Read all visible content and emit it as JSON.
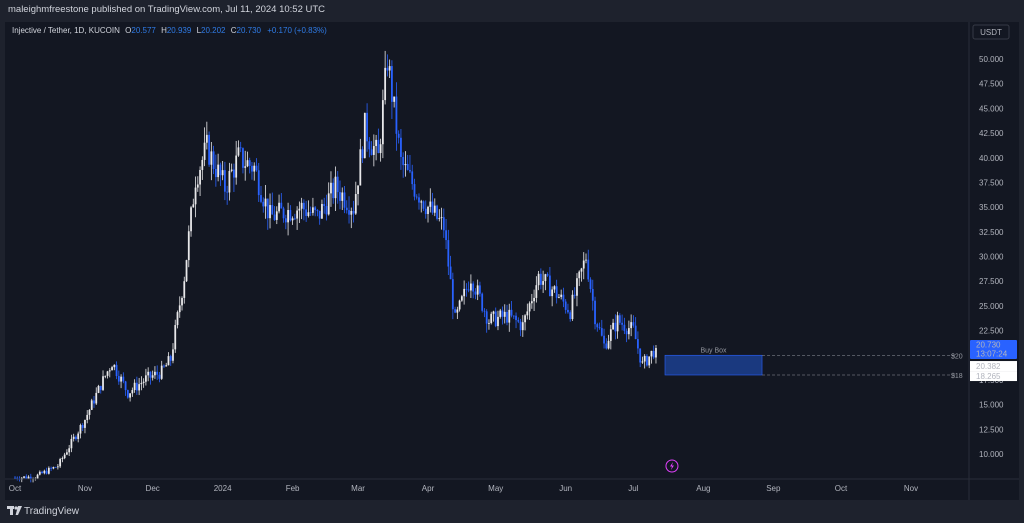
{
  "header": {
    "publisher_text": "maleighmfreestone published on TradingView.com, Jul 11, 2024 10:52 UTC"
  },
  "legend": {
    "symbol": "Injective / Tether, 1D, KUCOIN",
    "o_label": "O",
    "o_value": "20.577",
    "h_label": "H",
    "h_value": "20.939",
    "l_label": "L",
    "l_value": "20.202",
    "c_label": "C",
    "c_value": "20.730",
    "change": "+0.170 (+0.83%)"
  },
  "colors": {
    "background": "#131722",
    "frame": "#1e222d",
    "up_candle": "#e8e8ea",
    "down_candle": "#2962ff",
    "price_tag": "#2962ff",
    "buy_box": "#1c3f8f",
    "signal_icon": "#e040fb"
  },
  "footer": {
    "brand": "TradingView",
    "logo_icon": "tradingview-logo-icon"
  },
  "chart_data": {
    "type": "candlestick",
    "symbol": "Injective / Tether",
    "timeframe": "1D",
    "exchange": "KUCOIN",
    "y_unit_label": "USDT",
    "y_ticks": [
      "50.000",
      "47.500",
      "45.000",
      "42.500",
      "40.000",
      "37.500",
      "35.000",
      "32.500",
      "30.000",
      "27.500",
      "25.000",
      "22.500",
      "20.000",
      "17.500",
      "15.000",
      "12.500",
      "10.000"
    ],
    "x_ticks": [
      "Oct",
      "Nov",
      "Dec",
      "2024",
      "Feb",
      "Mar",
      "Apr",
      "May",
      "Jun",
      "Jul",
      "Aug",
      "Sep",
      "Oct",
      "Nov"
    ],
    "ylim": [
      6,
      53
    ],
    "price_path": [
      {
        "date": "2023-10-01",
        "price": 7.6
      },
      {
        "date": "2023-10-10",
        "price": 7.7
      },
      {
        "date": "2023-10-20",
        "price": 8.8
      },
      {
        "date": "2023-11-01",
        "price": 13.5
      },
      {
        "date": "2023-11-08",
        "price": 17.0
      },
      {
        "date": "2023-11-13",
        "price": 19.3
      },
      {
        "date": "2023-11-20",
        "price": 16.2
      },
      {
        "date": "2023-11-28",
        "price": 17.6
      },
      {
        "date": "2023-12-05",
        "price": 18.3
      },
      {
        "date": "2023-12-09",
        "price": 19.6
      },
      {
        "date": "2023-12-15",
        "price": 28.0
      },
      {
        "date": "2023-12-20",
        "price": 38.0
      },
      {
        "date": "2023-12-25",
        "price": 41.0
      },
      {
        "date": "2024-01-02",
        "price": 37.0
      },
      {
        "date": "2024-01-08",
        "price": 40.0
      },
      {
        "date": "2024-01-15",
        "price": 39.0
      },
      {
        "date": "2024-01-22",
        "price": 34.0
      },
      {
        "date": "2024-01-28",
        "price": 34.5
      },
      {
        "date": "2024-02-05",
        "price": 35.0
      },
      {
        "date": "2024-02-12",
        "price": 34.0
      },
      {
        "date": "2024-02-20",
        "price": 37.0
      },
      {
        "date": "2024-02-28",
        "price": 35.0
      },
      {
        "date": "2024-03-04",
        "price": 43.0
      },
      {
        "date": "2024-03-10",
        "price": 40.0
      },
      {
        "date": "2024-03-14",
        "price": 50.0
      },
      {
        "date": "2024-03-20",
        "price": 39.5
      },
      {
        "date": "2024-03-26",
        "price": 37.0
      },
      {
        "date": "2024-04-01",
        "price": 35.0
      },
      {
        "date": "2024-04-08",
        "price": 33.0
      },
      {
        "date": "2024-04-13",
        "price": 23.5
      },
      {
        "date": "2024-04-20",
        "price": 28.0
      },
      {
        "date": "2024-04-28",
        "price": 23.5
      },
      {
        "date": "2024-05-06",
        "price": 24.0
      },
      {
        "date": "2024-05-13",
        "price": 23.0
      },
      {
        "date": "2024-05-20",
        "price": 28.0
      },
      {
        "date": "2024-05-27",
        "price": 26.5
      },
      {
        "date": "2024-06-03",
        "price": 24.5
      },
      {
        "date": "2024-06-10",
        "price": 30.0
      },
      {
        "date": "2024-06-14",
        "price": 24.0
      },
      {
        "date": "2024-06-18",
        "price": 21.0
      },
      {
        "date": "2024-06-24",
        "price": 23.5
      },
      {
        "date": "2024-07-01",
        "price": 22.5
      },
      {
        "date": "2024-07-05",
        "price": 19.0
      },
      {
        "date": "2024-07-11",
        "price": 20.73
      }
    ],
    "last_price": "20.730",
    "countdown": "13:07:24",
    "scale_labels": [
      "20.382",
      "18.265"
    ],
    "annotation": {
      "label": "Buy Box",
      "top_price": 20,
      "bottom_price": 18,
      "top_label": "$20",
      "bottom_label": "$18",
      "start_date": "2024-07-15",
      "end_date": "2024-08-27"
    },
    "signal_date": "2024-07-11"
  }
}
